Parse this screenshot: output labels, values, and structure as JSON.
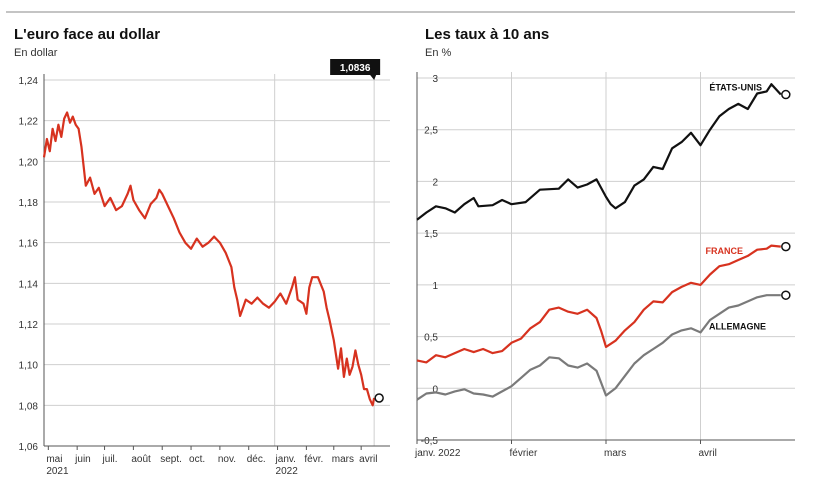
{
  "colors": {
    "red": "#d7321f",
    "black": "#111111",
    "gray": "#7a7a7a",
    "grid": "#cfcfcf"
  },
  "chart_data": [
    {
      "type": "line",
      "title": "L'euro face au dollar",
      "subtitle": "En dollar",
      "ylim": [
        1.06,
        1.24
      ],
      "yticks": [
        "1,06",
        "1,08",
        "1,10",
        "1,12",
        "1,14",
        "1,16",
        "1,18",
        "1,20",
        "1,22",
        "1,24"
      ],
      "xlim": [
        0,
        12
      ],
      "xticks": [
        {
          "pos": 0.15,
          "label": "mai",
          "sub": "2021"
        },
        {
          "pos": 1.15,
          "label": "juin"
        },
        {
          "pos": 2.1,
          "label": "juil."
        },
        {
          "pos": 3.1,
          "label": "août"
        },
        {
          "pos": 4.1,
          "label": "sept."
        },
        {
          "pos": 5.1,
          "label": "oct."
        },
        {
          "pos": 6.1,
          "label": "nov."
        },
        {
          "pos": 7.1,
          "label": "déc."
        },
        {
          "pos": 8.1,
          "label": "janv.",
          "sub": "2022"
        },
        {
          "pos": 9.1,
          "label": "févr."
        },
        {
          "pos": 10.05,
          "label": "mars"
        },
        {
          "pos": 11.0,
          "label": "avril"
        }
      ],
      "vlines": [
        8.0,
        11.45
      ],
      "last_value_label": "1,0836",
      "series": [
        {
          "color": "#d7321f",
          "points": [
            [
              0,
              1.202
            ],
            [
              0.1,
              1.211
            ],
            [
              0.2,
              1.205
            ],
            [
              0.3,
              1.216
            ],
            [
              0.4,
              1.21
            ],
            [
              0.5,
              1.218
            ],
            [
              0.6,
              1.212
            ],
            [
              0.7,
              1.221
            ],
            [
              0.8,
              1.224
            ],
            [
              0.9,
              1.219
            ],
            [
              1.0,
              1.222
            ],
            [
              1.1,
              1.218
            ],
            [
              1.2,
              1.216
            ],
            [
              1.3,
              1.207
            ],
            [
              1.45,
              1.188
            ],
            [
              1.6,
              1.192
            ],
            [
              1.75,
              1.184
            ],
            [
              1.9,
              1.187
            ],
            [
              2.1,
              1.178
            ],
            [
              2.3,
              1.182
            ],
            [
              2.5,
              1.176
            ],
            [
              2.7,
              1.178
            ],
            [
              2.9,
              1.184
            ],
            [
              3.0,
              1.188
            ],
            [
              3.1,
              1.181
            ],
            [
              3.3,
              1.176
            ],
            [
              3.5,
              1.172
            ],
            [
              3.7,
              1.179
            ],
            [
              3.9,
              1.182
            ],
            [
              4.0,
              1.186
            ],
            [
              4.1,
              1.184
            ],
            [
              4.3,
              1.178
            ],
            [
              4.5,
              1.172
            ],
            [
              4.7,
              1.165
            ],
            [
              4.9,
              1.16
            ],
            [
              5.1,
              1.157
            ],
            [
              5.3,
              1.162
            ],
            [
              5.5,
              1.158
            ],
            [
              5.7,
              1.16
            ],
            [
              5.9,
              1.163
            ],
            [
              6.1,
              1.16
            ],
            [
              6.3,
              1.155
            ],
            [
              6.5,
              1.148
            ],
            [
              6.6,
              1.138
            ],
            [
              6.7,
              1.132
            ],
            [
              6.8,
              1.124
            ],
            [
              6.9,
              1.128
            ],
            [
              7.0,
              1.132
            ],
            [
              7.2,
              1.13
            ],
            [
              7.4,
              1.133
            ],
            [
              7.6,
              1.13
            ],
            [
              7.8,
              1.128
            ],
            [
              8.0,
              1.131
            ],
            [
              8.2,
              1.135
            ],
            [
              8.4,
              1.13
            ],
            [
              8.6,
              1.138
            ],
            [
              8.7,
              1.143
            ],
            [
              8.8,
              1.132
            ],
            [
              9.0,
              1.13
            ],
            [
              9.1,
              1.125
            ],
            [
              9.2,
              1.138
            ],
            [
              9.3,
              1.143
            ],
            [
              9.5,
              1.143
            ],
            [
              9.7,
              1.136
            ],
            [
              9.8,
              1.128
            ],
            [
              9.9,
              1.122
            ],
            [
              10.05,
              1.112
            ],
            [
              10.2,
              1.098
            ],
            [
              10.3,
              1.108
            ],
            [
              10.4,
              1.094
            ],
            [
              10.5,
              1.103
            ],
            [
              10.6,
              1.095
            ],
            [
              10.7,
              1.099
            ],
            [
              10.8,
              1.107
            ],
            [
              10.9,
              1.1
            ],
            [
              11.0,
              1.095
            ],
            [
              11.1,
              1.088
            ],
            [
              11.2,
              1.088
            ],
            [
              11.3,
              1.083
            ],
            [
              11.4,
              1.08
            ],
            [
              11.45,
              1.0836
            ]
          ]
        }
      ]
    },
    {
      "type": "line",
      "title": "Les taux à 10 ans",
      "subtitle": "En %",
      "ylim": [
        -0.5,
        3
      ],
      "yticks": [
        "-0,5",
        "0",
        "0,5",
        "1",
        "1,5",
        "2",
        "2,5",
        "3"
      ],
      "xlim": [
        0,
        4
      ],
      "xticks": [
        {
          "pos": 0.0,
          "label": "janv. 2022"
        },
        {
          "pos": 1.0,
          "label": "février"
        },
        {
          "pos": 2.0,
          "label": "mars"
        },
        {
          "pos": 3.0,
          "label": "avril"
        }
      ],
      "vlines": [
        1.0,
        2.0,
        3.0
      ],
      "series": [
        {
          "name": "ÉTATS-UNIS",
          "color": "#111111",
          "points": [
            [
              0,
              1.63
            ],
            [
              0.1,
              1.7
            ],
            [
              0.2,
              1.76
            ],
            [
              0.3,
              1.74
            ],
            [
              0.4,
              1.7
            ],
            [
              0.5,
              1.78
            ],
            [
              0.6,
              1.84
            ],
            [
              0.65,
              1.76
            ],
            [
              0.8,
              1.77
            ],
            [
              0.9,
              1.82
            ],
            [
              1.0,
              1.78
            ],
            [
              1.15,
              1.8
            ],
            [
              1.3,
              1.92
            ],
            [
              1.5,
              1.93
            ],
            [
              1.6,
              2.02
            ],
            [
              1.7,
              1.94
            ],
            [
              1.8,
              1.97
            ],
            [
              1.9,
              2.02
            ],
            [
              2.0,
              1.85
            ],
            [
              2.05,
              1.78
            ],
            [
              2.1,
              1.74
            ],
            [
              2.2,
              1.8
            ],
            [
              2.3,
              1.96
            ],
            [
              2.4,
              2.02
            ],
            [
              2.5,
              2.14
            ],
            [
              2.6,
              2.12
            ],
            [
              2.7,
              2.32
            ],
            [
              2.8,
              2.38
            ],
            [
              2.9,
              2.47
            ],
            [
              3.0,
              2.35
            ],
            [
              3.1,
              2.5
            ],
            [
              3.2,
              2.63
            ],
            [
              3.3,
              2.7
            ],
            [
              3.4,
              2.75
            ],
            [
              3.5,
              2.7
            ],
            [
              3.6,
              2.85
            ],
            [
              3.7,
              2.87
            ],
            [
              3.75,
              2.94
            ],
            [
              3.85,
              2.84
            ]
          ]
        },
        {
          "name": "FRANCE",
          "color": "#d7321f",
          "points": [
            [
              0,
              0.27
            ],
            [
              0.1,
              0.25
            ],
            [
              0.2,
              0.32
            ],
            [
              0.3,
              0.3
            ],
            [
              0.4,
              0.34
            ],
            [
              0.5,
              0.38
            ],
            [
              0.6,
              0.35
            ],
            [
              0.7,
              0.38
            ],
            [
              0.8,
              0.34
            ],
            [
              0.9,
              0.36
            ],
            [
              1.0,
              0.44
            ],
            [
              1.1,
              0.48
            ],
            [
              1.2,
              0.58
            ],
            [
              1.3,
              0.64
            ],
            [
              1.4,
              0.76
            ],
            [
              1.5,
              0.78
            ],
            [
              1.6,
              0.74
            ],
            [
              1.7,
              0.72
            ],
            [
              1.8,
              0.76
            ],
            [
              1.9,
              0.68
            ],
            [
              1.95,
              0.55
            ],
            [
              2.0,
              0.4
            ],
            [
              2.1,
              0.46
            ],
            [
              2.2,
              0.56
            ],
            [
              2.3,
              0.64
            ],
            [
              2.4,
              0.76
            ],
            [
              2.5,
              0.84
            ],
            [
              2.6,
              0.83
            ],
            [
              2.7,
              0.93
            ],
            [
              2.8,
              0.98
            ],
            [
              2.9,
              1.02
            ],
            [
              3.0,
              1.0
            ],
            [
              3.1,
              1.1
            ],
            [
              3.2,
              1.18
            ],
            [
              3.3,
              1.2
            ],
            [
              3.4,
              1.24
            ],
            [
              3.5,
              1.28
            ],
            [
              3.6,
              1.34
            ],
            [
              3.7,
              1.35
            ],
            [
              3.75,
              1.38
            ],
            [
              3.85,
              1.37
            ]
          ]
        },
        {
          "name": "ALLEMAGNE",
          "color": "#7a7a7a",
          "points": [
            [
              0,
              -0.11
            ],
            [
              0.1,
              -0.05
            ],
            [
              0.2,
              -0.04
            ],
            [
              0.3,
              -0.06
            ],
            [
              0.4,
              -0.03
            ],
            [
              0.5,
              -0.01
            ],
            [
              0.6,
              -0.05
            ],
            [
              0.7,
              -0.06
            ],
            [
              0.8,
              -0.08
            ],
            [
              0.9,
              -0.03
            ],
            [
              1.0,
              0.02
            ],
            [
              1.1,
              0.1
            ],
            [
              1.2,
              0.18
            ],
            [
              1.3,
              0.22
            ],
            [
              1.4,
              0.3
            ],
            [
              1.5,
              0.29
            ],
            [
              1.6,
              0.22
            ],
            [
              1.7,
              0.2
            ],
            [
              1.8,
              0.24
            ],
            [
              1.9,
              0.17
            ],
            [
              1.95,
              0.05
            ],
            [
              2.0,
              -0.07
            ],
            [
              2.1,
              0.0
            ],
            [
              2.2,
              0.12
            ],
            [
              2.3,
              0.24
            ],
            [
              2.4,
              0.32
            ],
            [
              2.5,
              0.38
            ],
            [
              2.6,
              0.44
            ],
            [
              2.7,
              0.52
            ],
            [
              2.8,
              0.56
            ],
            [
              2.9,
              0.58
            ],
            [
              3.0,
              0.54
            ],
            [
              3.1,
              0.66
            ],
            [
              3.2,
              0.72
            ],
            [
              3.3,
              0.78
            ],
            [
              3.4,
              0.8
            ],
            [
              3.5,
              0.84
            ],
            [
              3.6,
              0.88
            ],
            [
              3.7,
              0.9
            ],
            [
              3.85,
              0.9
            ]
          ]
        }
      ]
    }
  ]
}
